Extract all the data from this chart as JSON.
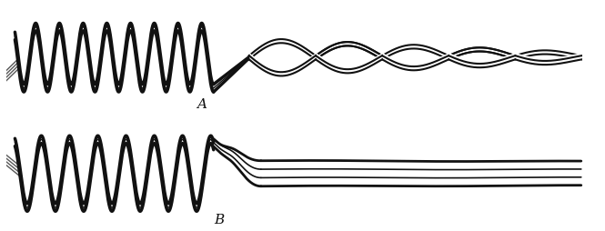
{
  "background_color": "#ffffff",
  "line_color": "#111111",
  "fig_width": 6.65,
  "fig_height": 2.54,
  "label_A": "A",
  "label_B": "B",
  "label_fontsize": 11,
  "coil_A_freq": 5.0,
  "coil_A_amp": 0.72,
  "coil_A_xstart": 0.15,
  "coil_A_xend": 3.5,
  "coil_B_freq": 4.2,
  "coil_B_amp": 0.8,
  "coil_B_xstart": 0.15,
  "coil_B_xend": 3.5
}
